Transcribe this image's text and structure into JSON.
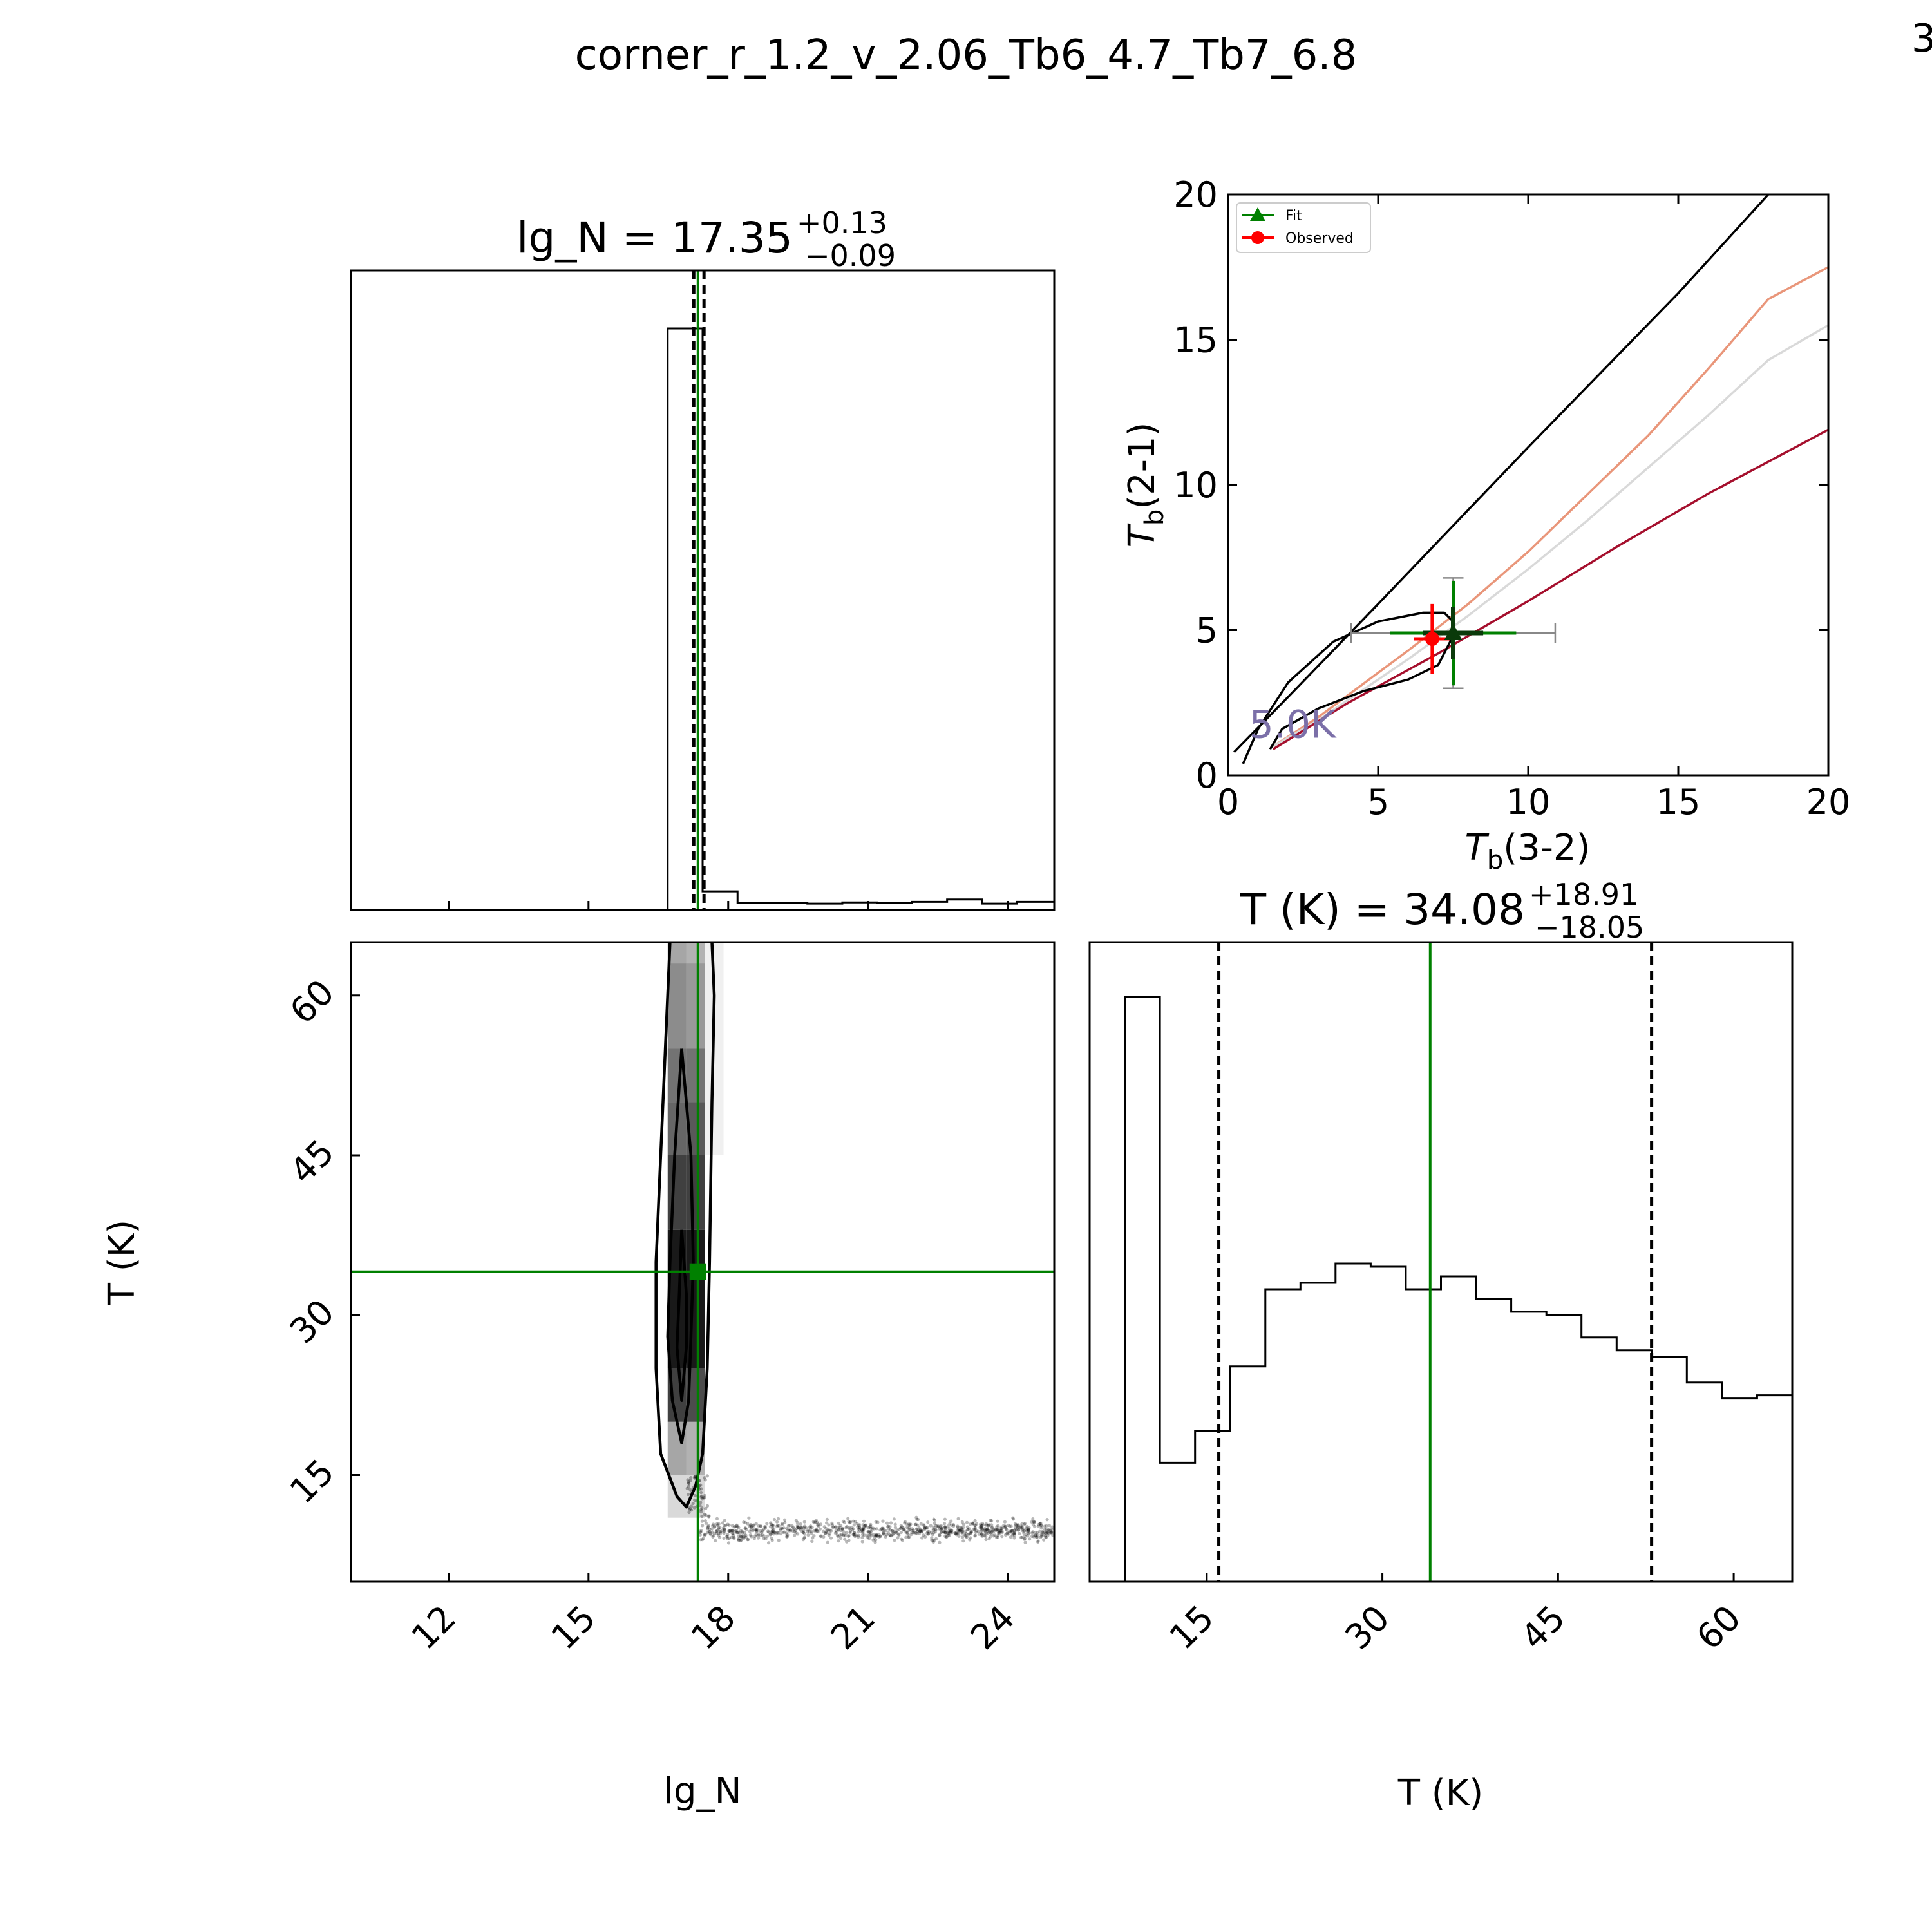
{
  "figure": {
    "title": "corner_r_1.2_v_2.06_Tb6_4.7_Tb7_6.8",
    "corner_mark": "3",
    "corner_mark_color": "#a07a1e"
  },
  "chart_data": [
    {
      "id": "lgN-hist",
      "type": "bar",
      "title_base": "lg_N = 17.35",
      "title_sup": "+0.13",
      "title_sub": "−0.09",
      "xlim": [
        9.9,
        25
      ],
      "xlabel": "",
      "ylabel": "",
      "bins": [
        {
          "x0": 16.7,
          "x1": 17.45,
          "v": 1.0
        },
        {
          "x0": 17.45,
          "x1": 18.2,
          "v": 0.032
        },
        {
          "x0": 18.2,
          "x1": 18.95,
          "v": 0.012
        },
        {
          "x0": 18.95,
          "x1": 19.7,
          "v": 0.012
        },
        {
          "x0": 19.7,
          "x1": 20.45,
          "v": 0.011
        },
        {
          "x0": 20.45,
          "x1": 21.2,
          "v": 0.013
        },
        {
          "x0": 21.2,
          "x1": 21.95,
          "v": 0.012
        },
        {
          "x0": 21.95,
          "x1": 22.7,
          "v": 0.014
        },
        {
          "x0": 22.7,
          "x1": 23.45,
          "v": 0.018
        },
        {
          "x0": 23.45,
          "x1": 24.2,
          "v": 0.011
        },
        {
          "x0": 24.2,
          "x1": 25.0,
          "v": 0.014
        }
      ],
      "quantiles": [
        17.26,
        17.48
      ],
      "median": 17.35,
      "median_color": "#008000"
    },
    {
      "id": "tb-plot",
      "type": "line",
      "xlabel_main": "T",
      "xlabel_sub": "b",
      "xlabel_tail": "(3-2)",
      "ylabel_main": "T",
      "ylabel_sub": "b",
      "ylabel_tail": "(2-1)",
      "xlim": [
        0,
        20
      ],
      "ylim": [
        0,
        20
      ],
      "xticks": [
        "0",
        "5",
        "10",
        "15",
        "20"
      ],
      "yticks": [
        "0",
        "5",
        "10",
        "15",
        "20"
      ],
      "legend_position": "upper-left",
      "legend": [
        {
          "label": "Fit",
          "color": "#008000",
          "marker": "triangle"
        },
        {
          "label": "Observed",
          "color": "#ff0000",
          "marker": "circle"
        }
      ],
      "annotation": "5.0K",
      "annotation_color": "#7b6fa8",
      "series": [
        {
          "color": "#000000",
          "points": [
            [
              0.2,
              0.8
            ],
            [
              2,
              2.7
            ],
            [
              5,
              5.9
            ],
            [
              10,
              11.3
            ],
            [
              15,
              16.6
            ],
            [
              18,
              20
            ]
          ]
        },
        {
          "color": "#e9967a",
          "points": [
            [
              1.5,
              1.0
            ],
            [
              3,
              2.0
            ],
            [
              6,
              4.3
            ],
            [
              8,
              5.9
            ],
            [
              10,
              7.7
            ],
            [
              12,
              9.7
            ],
            [
              14,
              11.7
            ],
            [
              16,
              14.0
            ],
            [
              18,
              16.4
            ],
            [
              20,
              17.5
            ]
          ]
        },
        {
          "color": "#d9d9d9",
          "points": [
            [
              1.5,
              1.0
            ],
            [
              3,
              1.9
            ],
            [
              6,
              4.0
            ],
            [
              8,
              5.5
            ],
            [
              10,
              7.1
            ],
            [
              12,
              8.8
            ],
            [
              14,
              10.6
            ],
            [
              16,
              12.4
            ],
            [
              18,
              14.3
            ],
            [
              20,
              15.5
            ]
          ]
        },
        {
          "color": "#a50f2d",
          "points": [
            [
              1.5,
              0.9
            ],
            [
              4,
              2.5
            ],
            [
              7,
              4.2
            ],
            [
              10,
              6.0
            ],
            [
              13,
              7.9
            ],
            [
              16,
              9.7
            ],
            [
              20,
              11.9
            ]
          ]
        },
        {
          "color": "#000000",
          "points": [
            [
              0.5,
              0.4
            ],
            [
              1.0,
              1.6
            ],
            [
              2.0,
              3.2
            ],
            [
              3.5,
              4.6
            ],
            [
              5.0,
              5.3
            ],
            [
              6.5,
              5.6
            ],
            [
              7.2,
              5.6
            ],
            [
              7.5,
              5.3
            ],
            [
              7.4,
              4.6
            ],
            [
              7.0,
              3.8
            ],
            [
              6.0,
              3.3
            ],
            [
              4.5,
              2.9
            ],
            [
              3.0,
              2.3
            ],
            [
              1.8,
              1.6
            ],
            [
              1.4,
              0.9
            ]
          ]
        }
      ],
      "fit": {
        "x": 7.5,
        "y": 4.9,
        "xerr_thin": 2.1,
        "yerr_thin": 1.8,
        "xerr_thick": 1.0,
        "yerr_thick": 0.9,
        "color": "#008000"
      },
      "observed": {
        "x": 6.8,
        "y": 4.7,
        "xerr": 0.6,
        "yerr": 1.2,
        "color": "#ff0000"
      },
      "gray_err": {
        "x": 7.5,
        "y": 4.9,
        "xerr": 3.4,
        "yerr": 1.9,
        "color": "#888888"
      }
    },
    {
      "id": "corner-2d",
      "type": "scatter",
      "xlim": [
        9.9,
        25
      ],
      "ylim": [
        5,
        65
      ],
      "xticks": [
        "12",
        "15",
        "18",
        "21",
        "24"
      ],
      "yticks": [
        "15",
        "30",
        "45",
        "60"
      ],
      "xlabel": "lg_N",
      "ylabel": "T (K)",
      "truth": {
        "x": 17.35,
        "y": 34.08
      },
      "truth_color": "#008000",
      "density_cells": [
        {
          "x0": 16.7,
          "x1": 17.1,
          "y0": 63,
          "y1": 65,
          "shade": 0.35
        },
        {
          "x0": 17.1,
          "x1": 17.5,
          "y0": 63,
          "y1": 65,
          "shade": 0.3
        },
        {
          "x0": 16.7,
          "x1": 17.1,
          "y0": 55,
          "y1": 63,
          "shade": 0.45
        },
        {
          "x0": 17.1,
          "x1": 17.5,
          "y0": 55,
          "y1": 63,
          "shade": 0.4
        },
        {
          "x0": 16.7,
          "x1": 17.1,
          "y0": 50,
          "y1": 55,
          "shade": 0.55
        },
        {
          "x0": 17.1,
          "x1": 17.5,
          "y0": 50,
          "y1": 55,
          "shade": 0.55
        },
        {
          "x0": 16.7,
          "x1": 17.1,
          "y0": 45,
          "y1": 50,
          "shade": 0.6
        },
        {
          "x0": 17.1,
          "x1": 17.5,
          "y0": 45,
          "y1": 50,
          "shade": 0.65
        },
        {
          "x0": 16.7,
          "x1": 17.1,
          "y0": 38,
          "y1": 45,
          "shade": 0.75
        },
        {
          "x0": 17.1,
          "x1": 17.5,
          "y0": 38,
          "y1": 45,
          "shade": 0.75
        },
        {
          "x0": 16.7,
          "x1": 17.1,
          "y0": 25,
          "y1": 38,
          "shade": 0.9
        },
        {
          "x0": 17.1,
          "x1": 17.5,
          "y0": 25,
          "y1": 38,
          "shade": 0.9
        },
        {
          "x0": 16.7,
          "x1": 17.1,
          "y0": 20,
          "y1": 25,
          "shade": 0.75
        },
        {
          "x0": 17.1,
          "x1": 17.5,
          "y0": 20,
          "y1": 25,
          "shade": 0.7
        },
        {
          "x0": 16.7,
          "x1": 17.1,
          "y0": 15,
          "y1": 20,
          "shade": 0.35
        },
        {
          "x0": 17.1,
          "x1": 17.5,
          "y0": 15,
          "y1": 20,
          "shade": 0.3
        },
        {
          "x0": 16.7,
          "x1": 17.1,
          "y0": 11,
          "y1": 15,
          "shade": 0.15
        },
        {
          "x0": 17.1,
          "x1": 17.5,
          "y0": 11,
          "y1": 15,
          "shade": 0.15
        },
        {
          "x0": 17.5,
          "x1": 17.9,
          "y0": 45,
          "y1": 65,
          "shade": 0.06
        }
      ],
      "contours": [
        [
          [
            16.75,
            65
          ],
          [
            16.65,
            55
          ],
          [
            16.55,
            45
          ],
          [
            16.45,
            35
          ],
          [
            16.45,
            25
          ],
          [
            16.55,
            17
          ],
          [
            16.9,
            13
          ],
          [
            17.1,
            12
          ],
          [
            17.3,
            14
          ],
          [
            17.45,
            17
          ],
          [
            17.55,
            25
          ],
          [
            17.6,
            35
          ],
          [
            17.65,
            50
          ],
          [
            17.7,
            60
          ],
          [
            17.65,
            65
          ]
        ],
        [
          [
            17.0,
            55
          ],
          [
            16.85,
            45
          ],
          [
            16.75,
            35
          ],
          [
            16.7,
            28
          ],
          [
            16.8,
            22
          ],
          [
            17.0,
            18
          ],
          [
            17.15,
            22
          ],
          [
            17.2,
            28
          ],
          [
            17.25,
            35
          ],
          [
            17.2,
            45
          ],
          [
            17.0,
            55
          ]
        ],
        [
          [
            17.0,
            38
          ],
          [
            16.95,
            32
          ],
          [
            16.9,
            27
          ],
          [
            17.0,
            22
          ],
          [
            17.1,
            27
          ],
          [
            17.1,
            32
          ],
          [
            17.0,
            38
          ]
        ]
      ],
      "scatter_band": {
        "x0": 17.4,
        "x1": 25,
        "y_center": 9.8,
        "y_spread": 0.9,
        "count": 900
      }
    },
    {
      "id": "T-hist",
      "type": "bar",
      "title_base": "T (K) = 34.08",
      "title_sup": "+18.91",
      "title_sub": "−18.05",
      "xlim": [
        5,
        65
      ],
      "xticks": [
        "15",
        "30",
        "45",
        "60"
      ],
      "xlabel": "T (K)",
      "bins": [
        {
          "x0": 5.0,
          "x1": 8.0,
          "v": 0
        },
        {
          "x0": 8.0,
          "x1": 11.0,
          "v": 0.91
        },
        {
          "x0": 11.0,
          "x1": 14.0,
          "v": 0.185
        },
        {
          "x0": 14.0,
          "x1": 17.0,
          "v": 0.235
        },
        {
          "x0": 17.0,
          "x1": 20.0,
          "v": 0.335
        },
        {
          "x0": 20.0,
          "x1": 23.0,
          "v": 0.455
        },
        {
          "x0": 23.0,
          "x1": 26.0,
          "v": 0.465
        },
        {
          "x0": 26.0,
          "x1": 29.0,
          "v": 0.495
        },
        {
          "x0": 29.0,
          "x1": 32.0,
          "v": 0.49
        },
        {
          "x0": 32.0,
          "x1": 35.0,
          "v": 0.455
        },
        {
          "x0": 35.0,
          "x1": 38.0,
          "v": 0.475
        },
        {
          "x0": 38.0,
          "x1": 41.0,
          "v": 0.44
        },
        {
          "x0": 41.0,
          "x1": 44.0,
          "v": 0.42
        },
        {
          "x0": 44.0,
          "x1": 47.0,
          "v": 0.415
        },
        {
          "x0": 47.0,
          "x1": 50.0,
          "v": 0.38
        },
        {
          "x0": 50.0,
          "x1": 53.0,
          "v": 0.36
        },
        {
          "x0": 53.0,
          "x1": 56.0,
          "v": 0.35
        },
        {
          "x0": 56.0,
          "x1": 59.0,
          "v": 0.31
        },
        {
          "x0": 59.0,
          "x1": 62.0,
          "v": 0.285
        },
        {
          "x0": 62.0,
          "x1": 65.0,
          "v": 0.29
        }
      ],
      "quantiles": [
        16.03,
        52.99
      ],
      "median": 34.08,
      "median_color": "#008000"
    }
  ]
}
